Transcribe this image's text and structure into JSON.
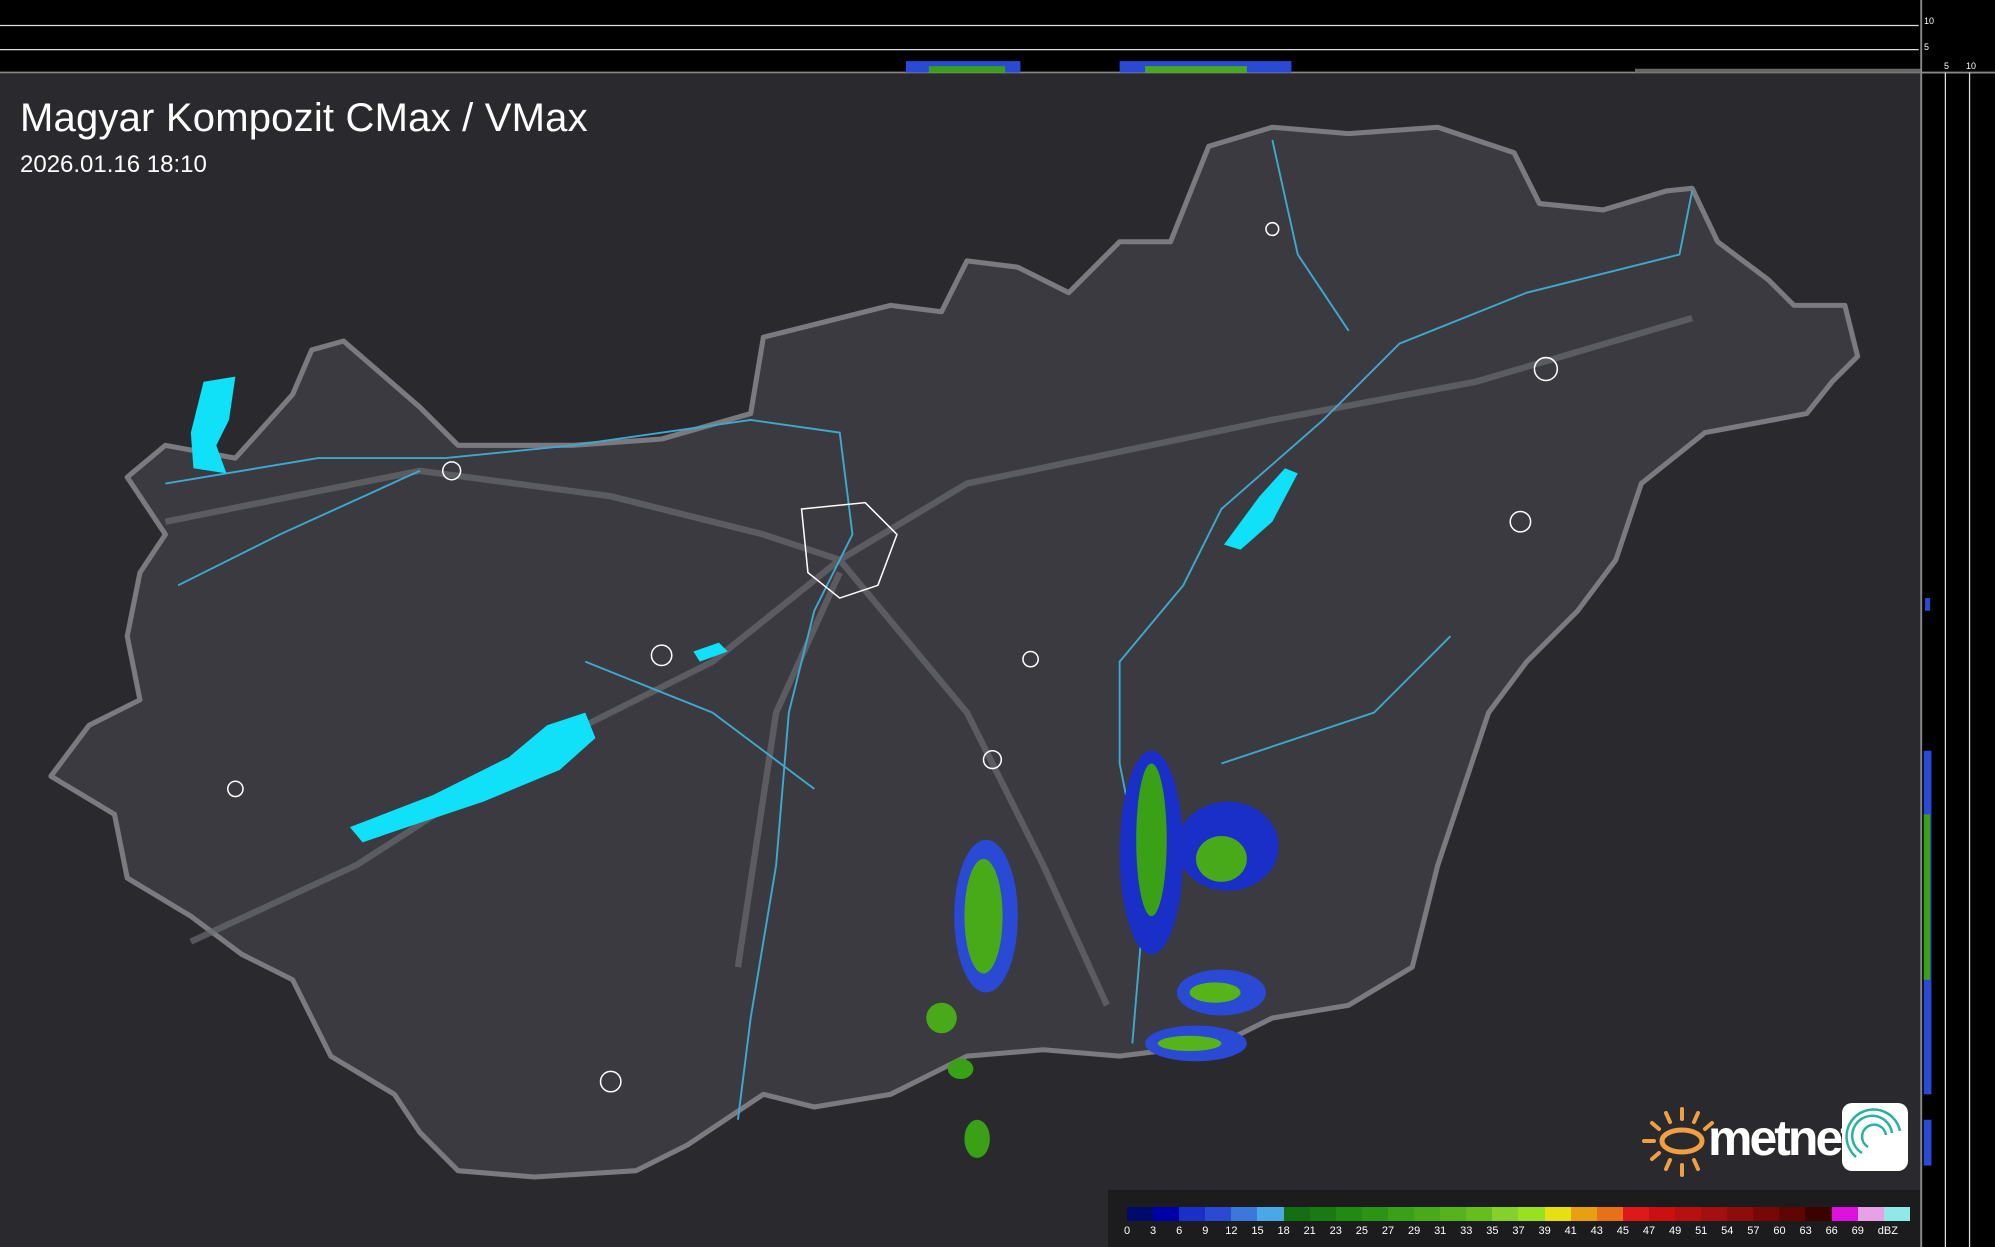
{
  "header": {
    "title": "Magyar Kompozit CMax / VMax",
    "timestamp": "2026.01.16 18:10"
  },
  "side_profile": {
    "top_axis_labels": [
      "10",
      "5"
    ],
    "right_axis_labels": [
      "5",
      "10"
    ]
  },
  "logo": {
    "brand": "metnet",
    "icon": "radar-swirl-icon"
  },
  "legend": {
    "unit": "dBZ",
    "labels": [
      "0",
      "3",
      "6",
      "9",
      "12",
      "15",
      "18",
      "21",
      "23",
      "25",
      "27",
      "29",
      "31",
      "33",
      "35",
      "37",
      "39",
      "41",
      "43",
      "45",
      "47",
      "49",
      "51",
      "54",
      "57",
      "60",
      "63",
      "66",
      "69"
    ],
    "colors": [
      "#000a6a",
      "#0000a8",
      "#1a2fc8",
      "#2a4ad6",
      "#3a78dc",
      "#4aa8e8",
      "#127012",
      "#187a10",
      "#208a12",
      "#2c9414",
      "#3aa016",
      "#48aa18",
      "#56b41a",
      "#66be1c",
      "#86d02a",
      "#98e020",
      "#e6e010",
      "#e8a010",
      "#e87018",
      "#e01818",
      "#cc1010",
      "#b81010",
      "#a41010",
      "#900c0c",
      "#780808",
      "#600404",
      "#3c0202",
      "#e010e0",
      "#e8a0e8",
      "#90e8e8"
    ]
  },
  "colors": {
    "background": "#2a2a2e",
    "country": "#3a3a40",
    "border": "#7a7a80",
    "rivers": "#3fa8d0",
    "lakes": "#10e0f8",
    "city_outline": "#ffffff",
    "logo_orange": "#f0a040"
  }
}
